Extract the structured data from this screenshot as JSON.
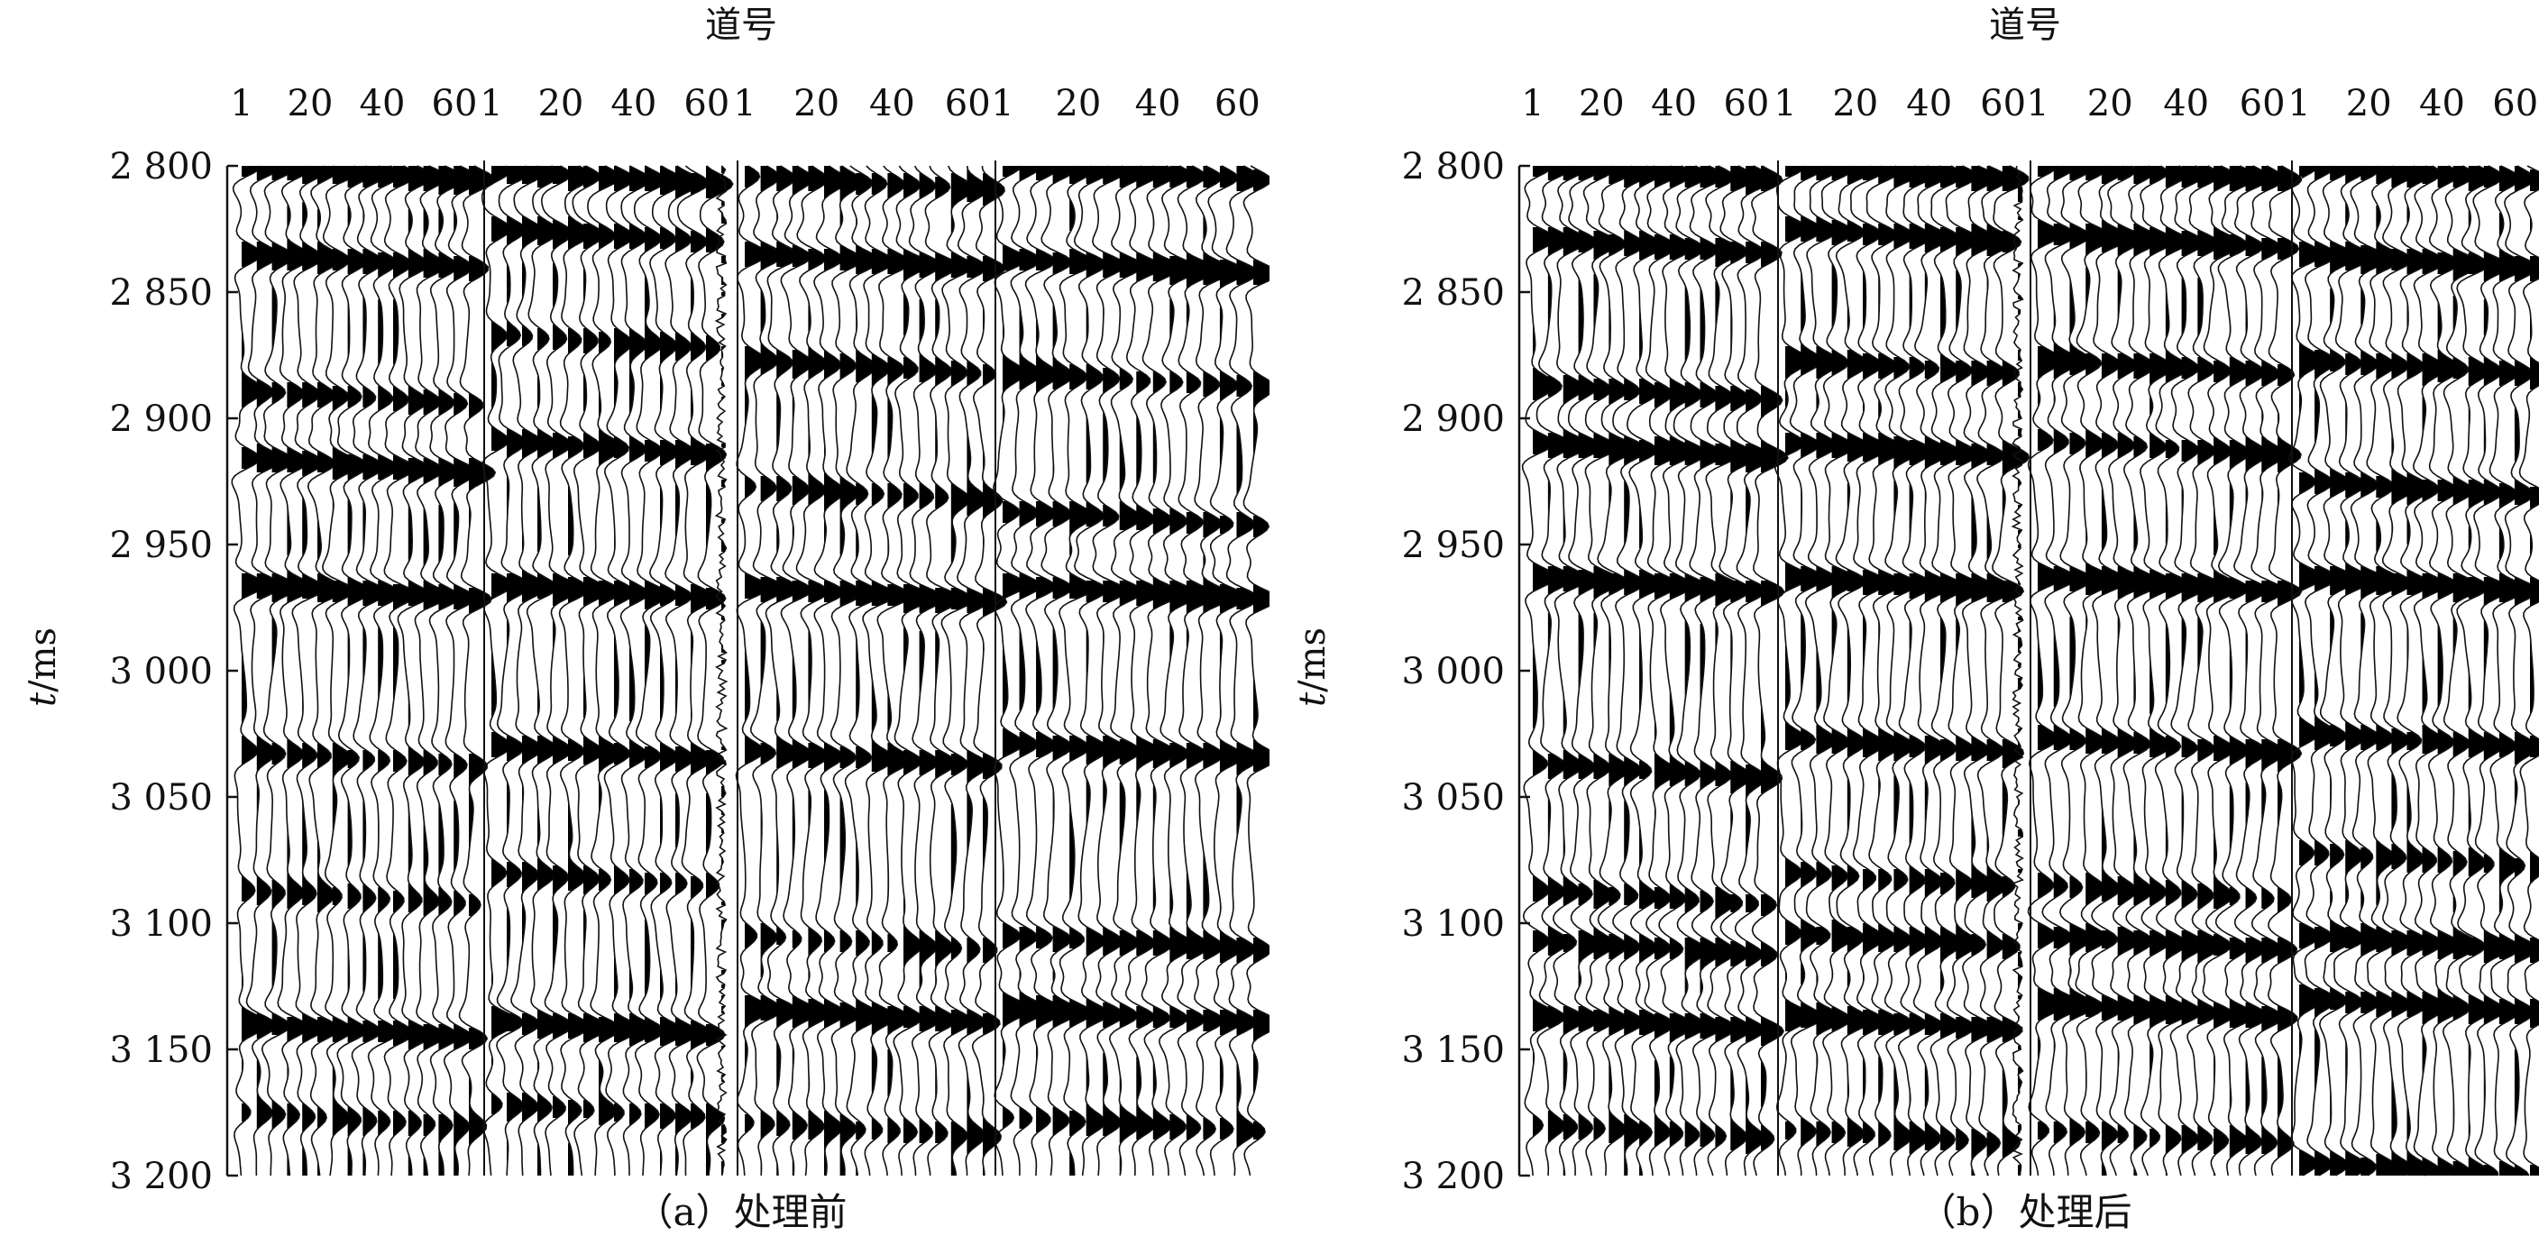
{
  "panels": [
    {
      "id": "a",
      "caption": "（a）处理前",
      "x_axis_title": "道号",
      "y_axis_label_var": "t",
      "y_axis_label_unit": "/ms",
      "gathers": [
        {
          "trace_ticks": [
            "1",
            "20",
            "40",
            "60"
          ]
        },
        {
          "trace_ticks": [
            "1",
            "20",
            "40",
            "60"
          ]
        },
        {
          "trace_ticks": [
            "1",
            "20",
            "40",
            "60"
          ]
        },
        {
          "trace_ticks": [
            "1",
            "20",
            "40",
            "60"
          ]
        }
      ],
      "y_ticks": [
        "2 800",
        "2 850",
        "2 900",
        "2 950",
        "3 000",
        "3 050",
        "3 100",
        "3 150",
        "3 200"
      ]
    },
    {
      "id": "b",
      "caption": "（b）处理后",
      "x_axis_title": "道号",
      "y_axis_label_var": "t",
      "y_axis_label_unit": "/ms",
      "gathers": [
        {
          "trace_ticks": [
            "1",
            "20",
            "40",
            "60"
          ]
        },
        {
          "trace_ticks": [
            "1",
            "20",
            "40",
            "60"
          ]
        },
        {
          "trace_ticks": [
            "1",
            "20",
            "40",
            "60"
          ]
        },
        {
          "trace_ticks": [
            "1",
            "20",
            "40",
            "60"
          ]
        }
      ],
      "y_ticks": [
        "2 800",
        "2 850",
        "2 900",
        "2 950",
        "3 000",
        "3 050",
        "3 100",
        "3 150",
        "3 200"
      ]
    }
  ],
  "time_range_ms": [
    2800,
    3200
  ],
  "trace_range": [
    1,
    64
  ],
  "wiggle_fill_color": "#000000",
  "background_color": "#ffffff"
}
